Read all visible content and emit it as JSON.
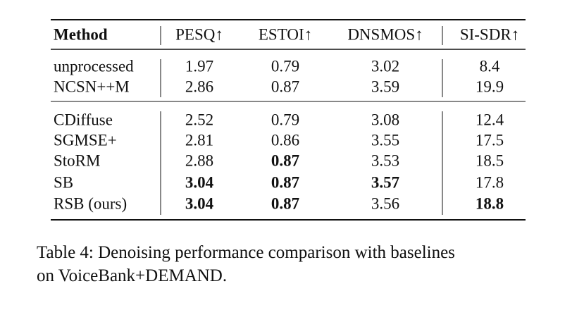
{
  "table": {
    "header": [
      "Method",
      "PESQ↑",
      "ESTOI↑",
      "DNSMOS↑",
      "SI-SDR↑"
    ],
    "groups": [
      {
        "rows": [
          {
            "cells": [
              "unprocessed",
              "1.97",
              "0.79",
              "3.02",
              "8.4"
            ]
          },
          {
            "cells": [
              "NCSN++M",
              "2.86",
              "0.87",
              "3.59",
              "19.9"
            ]
          }
        ]
      },
      {
        "rows": [
          {
            "cells": [
              "CDiffuse",
              "2.52",
              "0.79",
              "3.08",
              "12.4"
            ]
          },
          {
            "cells": [
              "SGMSE+",
              "2.81",
              "0.86",
              "3.55",
              "17.5"
            ]
          },
          {
            "cells": [
              "StoRM",
              "2.88",
              "0.87",
              "3.53",
              "18.5"
            ],
            "bold": [
              2
            ]
          },
          {
            "cells": [
              "SB",
              "3.04",
              "0.87",
              "3.57",
              "17.8"
            ],
            "bold": [
              1,
              2,
              3
            ]
          },
          {
            "cells": [
              "RSB (ours)",
              "3.04",
              "0.87",
              "3.56",
              "18.8"
            ],
            "bold": [
              1,
              2,
              4
            ]
          }
        ]
      }
    ]
  },
  "caption": [
    "Table 4: Denoising performance comparison with baselines",
    "on VoiceBank+DEMAND."
  ]
}
